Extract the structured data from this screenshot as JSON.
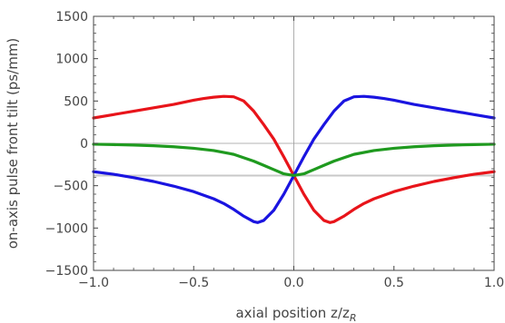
{
  "chart_data": {
    "type": "line",
    "xlabel": "axial position z/z",
    "xlabel_sub": "R",
    "ylabel": "on-axis pulse front tilt (ps/mm)",
    "xlim": [
      -1.0,
      1.0
    ],
    "ylim": [
      -1500,
      1500
    ],
    "xticks": [
      -1.0,
      -0.5,
      0.0,
      0.5,
      1.0
    ],
    "xtick_labels": [
      "−1.0",
      "−0.5",
      "0.0",
      "0.5",
      "1.0"
    ],
    "yticks": [
      -1500,
      -1000,
      -500,
      0,
      500,
      1000,
      1500
    ],
    "ytick_labels": [
      "−1500",
      "−1000",
      "−500",
      "0",
      "500",
      "1000",
      "1500"
    ],
    "reference_line": {
      "y": -380,
      "color": "#c8c8c8"
    },
    "series": [
      {
        "color": "#e8141a",
        "x": [
          -1.0,
          -0.9,
          -0.8,
          -0.7,
          -0.6,
          -0.5,
          -0.45,
          -0.4,
          -0.35,
          -0.3,
          -0.25,
          -0.2,
          -0.15,
          -0.1,
          -0.05,
          0.0,
          0.05,
          0.1,
          0.15,
          0.18,
          0.2,
          0.25,
          0.3,
          0.35,
          0.4,
          0.5,
          0.6,
          0.7,
          0.8,
          0.9,
          1.0
        ],
        "y": [
          300,
          340,
          380,
          420,
          460,
          510,
          530,
          545,
          555,
          550,
          500,
          380,
          220,
          50,
          -160,
          -380,
          -600,
          -790,
          -910,
          -935,
          -925,
          -860,
          -780,
          -710,
          -655,
          -570,
          -505,
          -450,
          -405,
          -365,
          -335
        ]
      },
      {
        "color": "#1a14e0",
        "x": [
          -1.0,
          -0.9,
          -0.8,
          -0.7,
          -0.6,
          -0.5,
          -0.4,
          -0.35,
          -0.3,
          -0.25,
          -0.2,
          -0.18,
          -0.15,
          -0.1,
          -0.05,
          0.0,
          0.05,
          0.1,
          0.15,
          0.2,
          0.25,
          0.3,
          0.35,
          0.4,
          0.45,
          0.5,
          0.6,
          0.7,
          0.8,
          0.9,
          1.0
        ],
        "y": [
          -335,
          -365,
          -405,
          -450,
          -505,
          -570,
          -655,
          -710,
          -780,
          -860,
          -925,
          -935,
          -910,
          -790,
          -600,
          -380,
          -160,
          50,
          220,
          380,
          500,
          550,
          555,
          545,
          530,
          510,
          460,
          420,
          380,
          340,
          300
        ]
      },
      {
        "color": "#1f9a1f",
        "x": [
          -1.0,
          -0.9,
          -0.8,
          -0.7,
          -0.6,
          -0.5,
          -0.4,
          -0.3,
          -0.2,
          -0.15,
          -0.1,
          -0.05,
          0.0,
          0.05,
          0.1,
          0.15,
          0.2,
          0.3,
          0.4,
          0.5,
          0.6,
          0.7,
          0.8,
          0.9,
          1.0
        ],
        "y": [
          -10,
          -15,
          -20,
          -28,
          -40,
          -58,
          -85,
          -130,
          -210,
          -260,
          -310,
          -360,
          -380,
          -360,
          -310,
          -260,
          -210,
          -130,
          -85,
          -58,
          -40,
          -28,
          -20,
          -15,
          -10
        ]
      }
    ]
  }
}
